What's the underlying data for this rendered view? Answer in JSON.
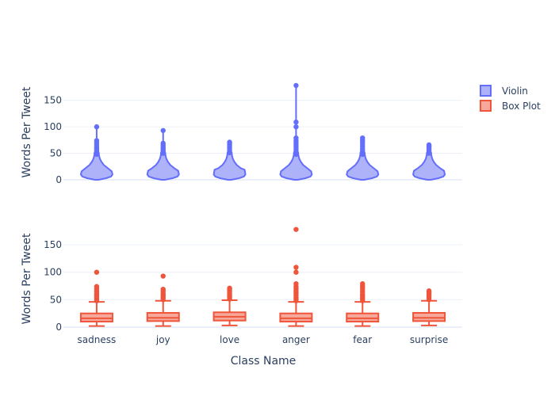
{
  "chart_data": {
    "type": "violin+box",
    "xlabel": "Class Name",
    "ylabel": "Words Per Tweet",
    "categories": [
      "sadness",
      "joy",
      "love",
      "anger",
      "fear",
      "surprise"
    ],
    "ylim": [
      0,
      190
    ],
    "yticks": [
      0,
      50,
      100,
      150
    ],
    "legend": {
      "placement": "top-right",
      "entries": [
        "Violin",
        "Box Plot"
      ]
    },
    "series": [
      {
        "name": "Violin",
        "color": "#636efa",
        "fill": "#aeb3f9",
        "panel": "top",
        "distributions": [
          {
            "category": "sadness",
            "max": 100,
            "median": 16
          },
          {
            "category": "joy",
            "max": 93,
            "median": 17
          },
          {
            "category": "love",
            "max": 71,
            "median": 19
          },
          {
            "category": "anger",
            "max": 178,
            "median": 16
          },
          {
            "category": "fear",
            "max": 79,
            "median": 16
          },
          {
            "category": "surprise",
            "max": 66,
            "median": 17
          }
        ]
      },
      {
        "name": "Box Plot",
        "color": "#ef553b",
        "fill": "#f6a89b",
        "panel": "bottom",
        "boxes": [
          {
            "category": "sadness",
            "min": 2,
            "q1": 10,
            "median": 16,
            "q3": 25,
            "upper_fence": 46,
            "outliers": [
              48,
              50,
              53,
              56,
              59,
              62,
              66,
              70,
              74,
              100
            ]
          },
          {
            "category": "joy",
            "min": 2,
            "q1": 11,
            "median": 17,
            "q3": 26,
            "upper_fence": 48,
            "outliers": [
              50,
              53,
              56,
              59,
              62,
              66,
              69,
              93
            ]
          },
          {
            "category": "love",
            "min": 3,
            "q1": 12,
            "median": 19,
            "q3": 27,
            "upper_fence": 49,
            "outliers": [
              51,
              54,
              57,
              60,
              63,
              66,
              69,
              71
            ]
          },
          {
            "category": "anger",
            "min": 2,
            "q1": 10,
            "median": 16,
            "q3": 25,
            "upper_fence": 46,
            "outliers": [
              48,
              51,
              54,
              58,
              62,
              66,
              70,
              74,
              79,
              100,
              109,
              178
            ]
          },
          {
            "category": "fear",
            "min": 2,
            "q1": 10,
            "median": 16,
            "q3": 25,
            "upper_fence": 46,
            "outliers": [
              48,
              51,
              54,
              57,
              60,
              64,
              68,
              72,
              75,
              79
            ]
          },
          {
            "category": "surprise",
            "min": 3,
            "q1": 11,
            "median": 17,
            "q3": 26,
            "upper_fence": 48,
            "outliers": [
              50,
              53,
              56,
              59,
              62,
              64,
              66
            ]
          }
        ]
      }
    ]
  }
}
